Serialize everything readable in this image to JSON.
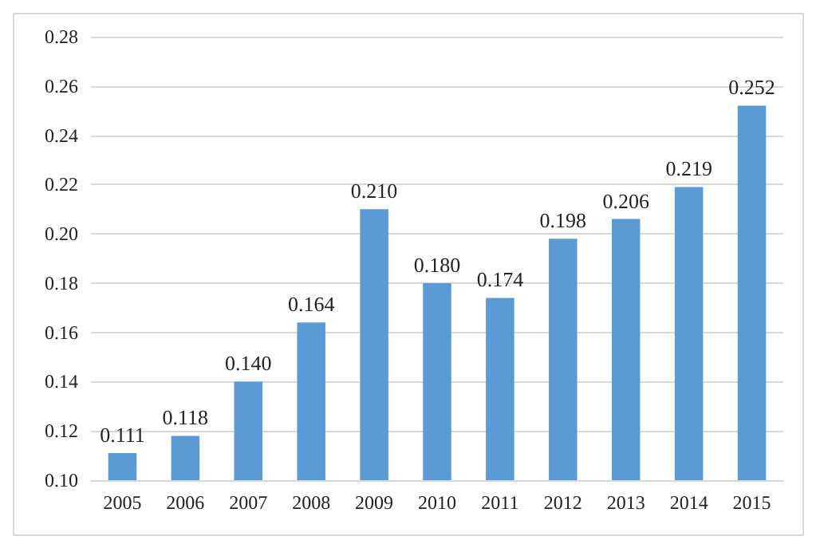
{
  "chart_data": {
    "type": "bar",
    "categories": [
      "2005",
      "2006",
      "2007",
      "2008",
      "2009",
      "2010",
      "2011",
      "2012",
      "2013",
      "2014",
      "2015"
    ],
    "values": [
      0.111,
      0.118,
      0.14,
      0.164,
      0.21,
      0.18,
      0.174,
      0.198,
      0.206,
      0.219,
      0.252
    ],
    "value_labels": [
      "0.111",
      "0.118",
      "0.140",
      "0.164",
      "0.210",
      "0.180",
      "0.174",
      "0.198",
      "0.206",
      "0.219",
      "0.252"
    ],
    "color": "#5b9bd5",
    "ylim": [
      0.1,
      0.28
    ],
    "yticks": [
      {
        "value": 0.1,
        "label": "0.10"
      },
      {
        "value": 0.12,
        "label": "0.12"
      },
      {
        "value": 0.14,
        "label": "0.14"
      },
      {
        "value": 0.16,
        "label": "0.16"
      },
      {
        "value": 0.18,
        "label": "0.18"
      },
      {
        "value": 0.2,
        "label": "0.20"
      },
      {
        "value": 0.22,
        "label": "0.22"
      },
      {
        "value": 0.24,
        "label": "0.24"
      },
      {
        "value": 0.26,
        "label": "0.26"
      },
      {
        "value": 0.28,
        "label": "0.28"
      }
    ],
    "grid": "y"
  }
}
